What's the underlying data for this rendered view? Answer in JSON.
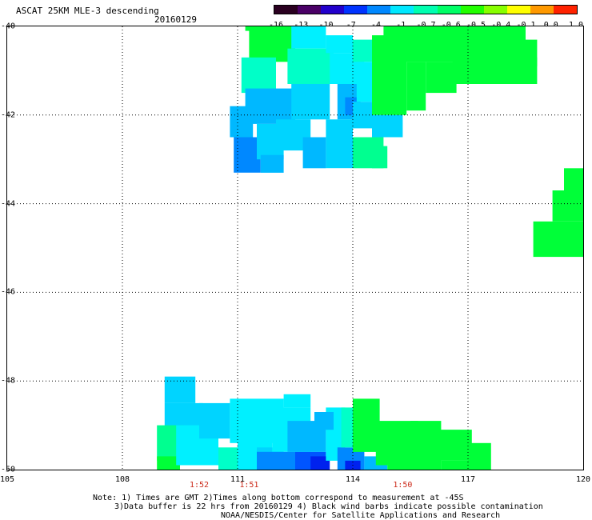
{
  "title": {
    "main": "ASCAT 25KM MLE-3 descending",
    "date": "20160129"
  },
  "colorbar": {
    "labels": [
      "-16",
      "-13",
      "-10",
      "-7",
      "-4",
      "-1",
      "-0.7",
      "-0.6",
      "-0.5",
      "-0.4",
      "-0.1",
      "0.0",
      "1.0"
    ],
    "colors": [
      "#2a0020",
      "#4a0066",
      "#2200cc",
      "#0033ff",
      "#0088ff",
      "#00e8ff",
      "#00ffb0",
      "#00ff66",
      "#22ff00",
      "#88ff00",
      "#ffff00",
      "#ff9900",
      "#ff2200"
    ]
  },
  "map": {
    "lon_range": [
      105,
      120
    ],
    "lat_range": [
      -50,
      -40
    ],
    "lon_ticks": [
      "105",
      "108",
      "111",
      "114",
      "117",
      "120"
    ],
    "lat_ticks": [
      "-40",
      "-42",
      "-44",
      "-46",
      "-48",
      "-50"
    ],
    "grid": true,
    "colors": {
      "green": "#00ff38",
      "light_green": "#00ff90",
      "cyan_green": "#00ffc8",
      "cyan": "#00f0ff",
      "light_blue": "#00d4ff",
      "sky_blue": "#00b8ff",
      "blue": "#0088ff",
      "deep_blue": "#0055ff",
      "dark_blue": "#0022ee"
    },
    "cells": [
      {
        "lon": [
          110.8,
          111.4
        ],
        "lat": [
          -42.5,
          -41.8
        ],
        "color": "sky_blue"
      },
      {
        "lon": [
          110.9,
          111.6
        ],
        "lat": [
          -43.3,
          -42.5
        ],
        "color": "blue"
      },
      {
        "lon": [
          111.2,
          112.0
        ],
        "lat": [
          -40.1,
          -39.9
        ],
        "color": "green"
      },
      {
        "lon": [
          111.3,
          112.5
        ],
        "lat": [
          -40.8,
          -40.0
        ],
        "color": "green"
      },
      {
        "lon": [
          111.1,
          112.0
        ],
        "lat": [
          -41.5,
          -40.7
        ],
        "color": "cyan_green"
      },
      {
        "lon": [
          111.2,
          112.5
        ],
        "lat": [
          -42.2,
          -41.4
        ],
        "color": "sky_blue"
      },
      {
        "lon": [
          111.5,
          112.2
        ],
        "lat": [
          -43.0,
          -42.2
        ],
        "color": "light_blue"
      },
      {
        "lon": [
          111.6,
          112.2
        ],
        "lat": [
          -43.3,
          -42.9
        ],
        "color": "sky_blue"
      },
      {
        "lon": [
          112.4,
          113.3
        ],
        "lat": [
          -40.5,
          -40.0
        ],
        "color": "cyan"
      },
      {
        "lon": [
          112.3,
          113.5
        ],
        "lat": [
          -41.3,
          -40.5
        ],
        "color": "cyan_green"
      },
      {
        "lon": [
          112.4,
          113.4
        ],
        "lat": [
          -42.1,
          -41.3
        ],
        "color": "light_blue"
      },
      {
        "lon": [
          112.0,
          112.9
        ],
        "lat": [
          -42.8,
          -42.1
        ],
        "color": "light_blue"
      },
      {
        "lon": [
          112.7,
          113.3
        ],
        "lat": [
          -43.2,
          -42.5
        ],
        "color": "sky_blue"
      },
      {
        "lon": [
          113.3,
          114.0
        ],
        "lat": [
          -40.6,
          -40.2
        ],
        "color": "cyan"
      },
      {
        "lon": [
          113.4,
          114.3
        ],
        "lat": [
          -41.3,
          -40.6
        ],
        "color": "cyan"
      },
      {
        "lon": [
          113.6,
          114.2
        ],
        "lat": [
          -42.1,
          -41.3
        ],
        "color": "sky_blue"
      },
      {
        "lon": [
          113.8,
          114.2
        ],
        "lat": [
          -42.0,
          -41.6
        ],
        "color": "blue"
      },
      {
        "lon": [
          113.3,
          114.0
        ],
        "lat": [
          -43.2,
          -42.1
        ],
        "color": "light_blue"
      },
      {
        "lon": [
          114.0,
          114.5
        ],
        "lat": [
          -40.8,
          -40.3
        ],
        "color": "cyan_green"
      },
      {
        "lon": [
          114.1,
          114.8
        ],
        "lat": [
          -41.7,
          -40.8
        ],
        "color": "cyan"
      },
      {
        "lon": [
          114.0,
          114.5
        ],
        "lat": [
          -42.3,
          -41.7
        ],
        "color": "light_blue"
      },
      {
        "lon": [
          114.0,
          114.8
        ],
        "lat": [
          -43.2,
          -42.5
        ],
        "color": "light_green"
      },
      {
        "lon": [
          114.5,
          114.9
        ],
        "lat": [
          -43.2,
          -42.7
        ],
        "color": "light_green"
      },
      {
        "lon": [
          114.5,
          115.3
        ],
        "lat": [
          -42.5,
          -42.0
        ],
        "color": "light_blue"
      },
      {
        "lon": [
          114.5,
          115.4
        ],
        "lat": [
          -42.0,
          -40.2
        ],
        "color": "green"
      },
      {
        "lon": [
          114.8,
          115.5
        ],
        "lat": [
          -40.4,
          -39.9
        ],
        "color": "green"
      },
      {
        "lon": [
          115.4,
          115.9
        ],
        "lat": [
          -41.9,
          -40.8
        ],
        "color": "green"
      },
      {
        "lon": [
          115.3,
          117.0
        ],
        "lat": [
          -40.8,
          -39.9
        ],
        "color": "green"
      },
      {
        "lon": [
          115.9,
          116.7
        ],
        "lat": [
          -41.5,
          -40.8
        ],
        "color": "green"
      },
      {
        "lon": [
          116.6,
          118.8
        ],
        "lat": [
          -41.3,
          -40.7
        ],
        "color": "green"
      },
      {
        "lon": [
          117.0,
          118.5
        ],
        "lat": [
          -40.8,
          -39.9
        ],
        "color": "green"
      },
      {
        "lon": [
          118.5,
          118.8
        ],
        "lat": [
          -40.9,
          -40.3
        ],
        "color": "green"
      },
      {
        "lon": [
          119.5,
          120.0
        ],
        "lat": [
          -43.7,
          -43.2
        ],
        "color": "green"
      },
      {
        "lon": [
          119.2,
          120.0
        ],
        "lat": [
          -44.4,
          -43.7
        ],
        "color": "green"
      },
      {
        "lon": [
          118.7,
          120.0
        ],
        "lat": [
          -45.2,
          -44.4
        ],
        "color": "green"
      },
      {
        "lon": [
          109.1,
          109.9
        ],
        "lat": [
          -48.5,
          -47.9
        ],
        "color": "light_blue"
      },
      {
        "lon": [
          109.1,
          110.1
        ],
        "lat": [
          -49.3,
          -48.5
        ],
        "color": "light_blue"
      },
      {
        "lon": [
          108.9,
          109.6
        ],
        "lat": [
          -49.8,
          -49.0
        ],
        "color": "light_green"
      },
      {
        "lon": [
          108.9,
          109.5
        ],
        "lat": [
          -50.0,
          -49.7
        ],
        "color": "green"
      },
      {
        "lon": [
          109.4,
          110.5
        ],
        "lat": [
          -49.9,
          -49.0
        ],
        "color": "cyan"
      },
      {
        "lon": [
          110.0,
          110.8
        ],
        "lat": [
          -49.3,
          -48.5
        ],
        "color": "light_blue"
      },
      {
        "lon": [
          110.5,
          111.3
        ],
        "lat": [
          -50.0,
          -49.5
        ],
        "color": "cyan_green"
      },
      {
        "lon": [
          110.8,
          112.2
        ],
        "lat": [
          -49.4,
          -48.4
        ],
        "color": "cyan"
      },
      {
        "lon": [
          111.0,
          111.9
        ],
        "lat": [
          -50.0,
          -49.3
        ],
        "color": "cyan"
      },
      {
        "lon": [
          111.5,
          112.2
        ],
        "lat": [
          -50.0,
          -49.5
        ],
        "color": "light_blue"
      },
      {
        "lon": [
          111.9,
          112.9
        ],
        "lat": [
          -49.6,
          -48.6
        ],
        "color": "cyan"
      },
      {
        "lon": [
          112.2,
          112.9
        ],
        "lat": [
          -48.6,
          -48.3
        ],
        "color": "cyan"
      },
      {
        "lon": [
          111.5,
          112.5
        ],
        "lat": [
          -50.0,
          -49.6
        ],
        "color": "blue"
      },
      {
        "lon": [
          112.5,
          113.3
        ],
        "lat": [
          -50.0,
          -49.6
        ],
        "color": "deep_blue"
      },
      {
        "lon": [
          112.9,
          113.4
        ],
        "lat": [
          -50.0,
          -49.7
        ],
        "color": "dark_blue"
      },
      {
        "lon": [
          112.3,
          113.3
        ],
        "lat": [
          -49.6,
          -48.9
        ],
        "color": "sky_blue"
      },
      {
        "lon": [
          113.3,
          113.8
        ],
        "lat": [
          -49.8,
          -48.6
        ],
        "color": "cyan"
      },
      {
        "lon": [
          113.0,
          113.5
        ],
        "lat": [
          -49.1,
          -48.7
        ],
        "color": "sky_blue"
      },
      {
        "lon": [
          113.6,
          114.3
        ],
        "lat": [
          -50.0,
          -49.5
        ],
        "color": "blue"
      },
      {
        "lon": [
          113.8,
          114.2
        ],
        "lat": [
          -50.0,
          -49.8
        ],
        "color": "dark_blue"
      },
      {
        "lon": [
          113.7,
          114.6
        ],
        "lat": [
          -49.5,
          -48.6
        ],
        "color": "cyan_green"
      },
      {
        "lon": [
          114.0,
          114.7
        ],
        "lat": [
          -49.6,
          -48.4
        ],
        "color": "green"
      },
      {
        "lon": [
          114.3,
          114.9
        ],
        "lat": [
          -50.0,
          -49.7
        ],
        "color": "sky_blue"
      },
      {
        "lon": [
          114.6,
          115.7
        ],
        "lat": [
          -49.9,
          -48.9
        ],
        "color": "green"
      },
      {
        "lon": [
          115.5,
          116.3
        ],
        "lat": [
          -50.0,
          -48.9
        ],
        "color": "green"
      },
      {
        "lon": [
          114.9,
          115.5
        ],
        "lat": [
          -50.0,
          -49.7
        ],
        "color": "green"
      },
      {
        "lon": [
          116.3,
          117.1
        ],
        "lat": [
          -50.0,
          -49.8
        ],
        "color": "green"
      },
      {
        "lon": [
          116.0,
          117.1
        ],
        "lat": [
          -49.8,
          -49.1
        ],
        "color": "green"
      },
      {
        "lon": [
          117.0,
          117.6
        ],
        "lat": [
          -50.0,
          -49.4
        ],
        "color": "green"
      }
    ]
  },
  "pass_times": [
    {
      "lon": 110.0,
      "label": "1:52"
    },
    {
      "lon": 111.3,
      "label": "1:51"
    },
    {
      "lon": 115.3,
      "label": "1:50"
    }
  ],
  "notes": [
    "Note: 1) Times are GMT 2)Times along bottom correspond to measurement at -45S",
    "3)Data buffer is 22 hrs from 20160129 4) Black wind barbs indicate possible contamination",
    "NOAA/NESDIS/Center for Satellite Applications and Research"
  ]
}
